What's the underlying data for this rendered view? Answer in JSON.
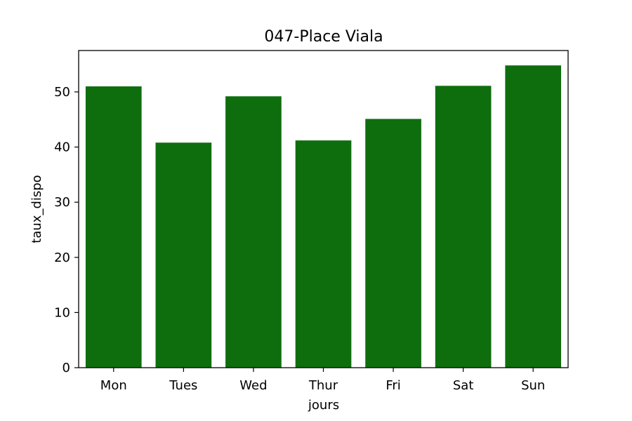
{
  "chart_data": {
    "type": "bar",
    "title": "047-Place Viala",
    "xlabel": "jours",
    "ylabel": "taux_dispo",
    "categories": [
      "Mon",
      "Tues",
      "Wed",
      "Thur",
      "Fri",
      "Sat",
      "Sun"
    ],
    "values": [
      51.0,
      40.8,
      49.2,
      41.2,
      45.1,
      51.1,
      54.8
    ],
    "ylim": [
      0,
      57.5
    ],
    "yticks": [
      0,
      10,
      20,
      30,
      40,
      50
    ],
    "grid": false,
    "bar_color": "#0e6e0e"
  }
}
